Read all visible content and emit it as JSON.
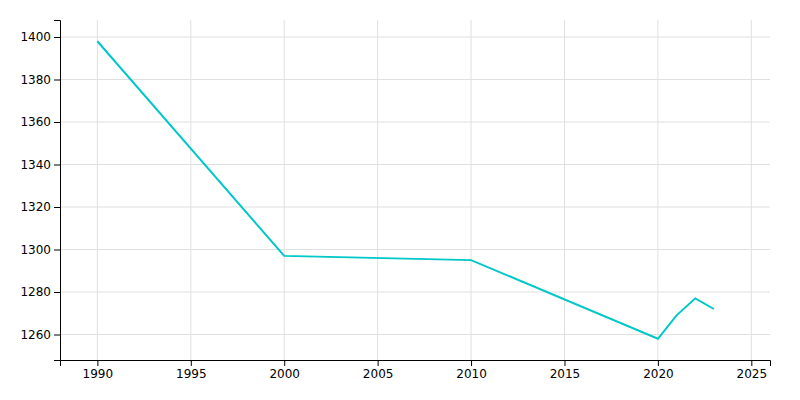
{
  "chart_data": {
    "type": "line",
    "x": [
      1990,
      2000,
      2010,
      2020,
      2021,
      2022,
      2023
    ],
    "values": [
      1398,
      1297,
      1295,
      1258,
      1269,
      1277,
      1272
    ],
    "color": "#00C8C8",
    "xlim": [
      1988,
      2026
    ],
    "ylim": [
      1248,
      1408
    ],
    "xticks": [
      1990,
      1995,
      2000,
      2005,
      2010,
      2015,
      2020,
      2025
    ],
    "yticks": [
      1260,
      1280,
      1300,
      1320,
      1340,
      1360,
      1380,
      1400
    ],
    "grid": true
  }
}
